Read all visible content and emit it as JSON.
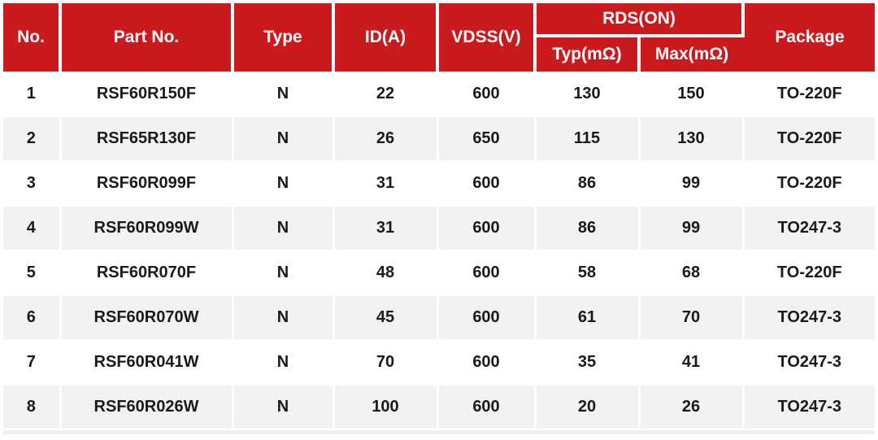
{
  "colors": {
    "header_bg": "#CA1A1E",
    "alt_row_bg": "#F2F2F2",
    "body_text": "#1a1a1a"
  },
  "table": {
    "columns": {
      "no": "No.",
      "part_no": "Part No.",
      "type": "Type",
      "id_a": "ID(A)",
      "vdss": "VDSS(V)",
      "rds_on": "RDS(ON)",
      "rds_typ": "Typ(mΩ)",
      "rds_max": "Max(mΩ)",
      "package": "Package"
    },
    "rows": [
      [
        "1",
        "RSF60R150F",
        "N",
        "22",
        "600",
        "130",
        "150",
        "TO-220F"
      ],
      [
        "2",
        "RSF65R130F",
        "N",
        "26",
        "650",
        "115",
        "130",
        "TO-220F"
      ],
      [
        "3",
        "RSF60R099F",
        "N",
        "31",
        "600",
        "86",
        "99",
        "TO-220F"
      ],
      [
        "4",
        "RSF60R099W",
        "N",
        "31",
        "600",
        "86",
        "99",
        "TO247-3"
      ],
      [
        "5",
        "RSF60R070F",
        "N",
        "48",
        "600",
        "58",
        "68",
        "TO-220F"
      ],
      [
        "6",
        "RSF60R070W",
        "N",
        "45",
        "600",
        "61",
        "70",
        "TO247-3"
      ],
      [
        "7",
        "RSF60R041W",
        "N",
        "70",
        "600",
        "35",
        "41",
        "TO247-3"
      ],
      [
        "8",
        "RSF60R026W",
        "N",
        "100",
        "600",
        "20",
        "26",
        "TO247-3"
      ]
    ]
  },
  "chart_data": {
    "type": "table",
    "title": "",
    "columns": [
      "No.",
      "Part No.",
      "Type",
      "ID(A)",
      "VDSS(V)",
      "RDS(ON) Typ(mΩ)",
      "RDS(ON) Max(mΩ)",
      "Package"
    ],
    "rows": [
      [
        "1",
        "RSF60R150F",
        "N",
        22,
        600,
        130,
        150,
        "TO-220F"
      ],
      [
        "2",
        "RSF65R130F",
        "N",
        26,
        650,
        115,
        130,
        "TO-220F"
      ],
      [
        "3",
        "RSF60R099F",
        "N",
        31,
        600,
        86,
        99,
        "TO-220F"
      ],
      [
        "4",
        "RSF60R099W",
        "N",
        31,
        600,
        86,
        99,
        "TO247-3"
      ],
      [
        "5",
        "RSF60R070F",
        "N",
        48,
        600,
        58,
        68,
        "TO-220F"
      ],
      [
        "6",
        "RSF60R070W",
        "N",
        45,
        600,
        61,
        70,
        "TO247-3"
      ],
      [
        "7",
        "RSF60R041W",
        "N",
        70,
        600,
        35,
        41,
        "TO247-3"
      ],
      [
        "8",
        "RSF60R026W",
        "N",
        100,
        600,
        20,
        26,
        "TO247-3"
      ]
    ]
  }
}
